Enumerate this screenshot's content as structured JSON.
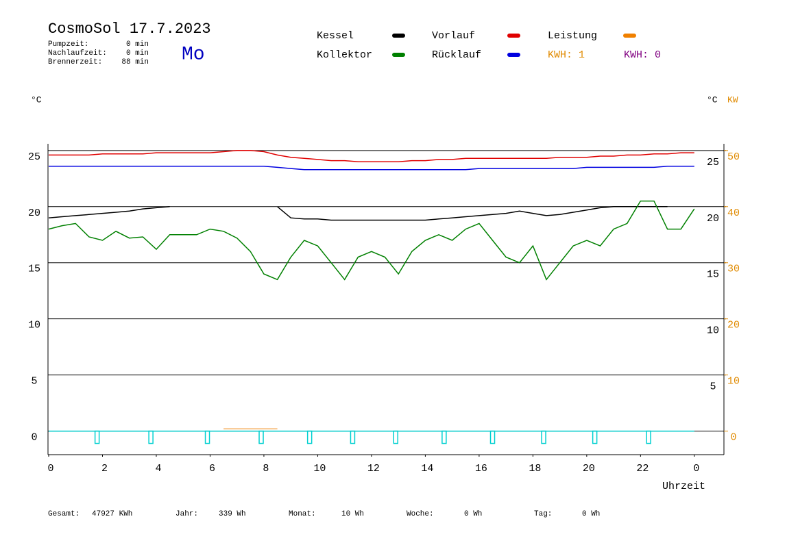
{
  "chart_data": {
    "type": "line",
    "title": "CosmoSol 17.7.2023",
    "weekday": "Mo",
    "info": [
      [
        "Pumpzeit:",
        "0 min"
      ],
      [
        "Nachlaufzeit:",
        "0 min"
      ],
      [
        "Brennerzeit:",
        "88 min"
      ]
    ],
    "y_label": "°C",
    "y2_label_left": "°C",
    "y2_label": "KW",
    "x_label": "Uhrzeit",
    "xlim": [
      0,
      25.1
    ],
    "xticks": [
      0,
      2,
      4,
      6,
      8,
      10,
      12,
      14,
      16,
      18,
      20,
      22,
      {
        "value": 24,
        "label": "0"
      }
    ],
    "ylim": [
      -2.1,
      25.6
    ],
    "yticks": [
      0,
      5,
      10,
      15,
      20,
      25
    ],
    "right_yticks": [
      5,
      10,
      15,
      20,
      25
    ],
    "y2lim": [
      -4.2,
      51.2
    ],
    "y2ticks": [
      0,
      10,
      20,
      30,
      40,
      50
    ],
    "y2_color": "#e08a00",
    "grid": true,
    "x": [
      0,
      0.5,
      1,
      1.5,
      2,
      2.5,
      3,
      3.5,
      4,
      4.5,
      5,
      5.5,
      6,
      6.5,
      7,
      7.5,
      8,
      8.5,
      9,
      9.5,
      10,
      10.5,
      11,
      11.5,
      12,
      12.5,
      13,
      13.5,
      14,
      14.5,
      15,
      15.5,
      16,
      16.5,
      17,
      17.5,
      18,
      18.5,
      19,
      19.5,
      20,
      20.5,
      21,
      21.5,
      22,
      22.5,
      23,
      23.5,
      24
    ],
    "series": [
      {
        "name": "Kessel",
        "color": "#000000",
        "values": [
          19.0,
          19.1,
          19.2,
          19.3,
          19.4,
          19.5,
          19.6,
          19.8,
          19.9,
          20.0,
          null,
          null,
          null,
          null,
          null,
          null,
          null,
          20.0,
          19.0,
          18.9,
          18.9,
          18.8,
          18.8,
          18.8,
          18.8,
          18.8,
          18.8,
          18.8,
          18.8,
          18.9,
          19.0,
          19.1,
          19.2,
          19.3,
          19.4,
          19.6,
          19.4,
          19.2,
          19.3,
          19.5,
          19.7,
          19.9,
          20.0,
          20.0,
          20.0,
          20.0,
          20.0,
          null,
          null
        ]
      },
      {
        "name": "Kollektor",
        "color": "#008000",
        "values": [
          18.0,
          18.3,
          18.5,
          17.3,
          17.0,
          17.8,
          17.2,
          17.3,
          16.2,
          17.5,
          17.5,
          17.5,
          18.0,
          17.8,
          17.2,
          16.0,
          14.0,
          13.5,
          15.5,
          17.0,
          16.5,
          15.0,
          13.5,
          15.5,
          16.0,
          15.5,
          14.0,
          16.0,
          17.0,
          17.5,
          17.0,
          18.0,
          18.5,
          17.0,
          15.5,
          15.0,
          16.5,
          13.5,
          15.0,
          16.5,
          17.0,
          16.5,
          18.0,
          18.5,
          20.5,
          20.5,
          18.0,
          18.0,
          19.8
        ]
      },
      {
        "name": "Vorlauf",
        "color": "#e00000",
        "values": [
          24.6,
          24.6,
          24.6,
          24.6,
          24.7,
          24.7,
          24.7,
          24.7,
          24.8,
          24.8,
          24.8,
          24.8,
          24.8,
          24.9,
          25.0,
          25.0,
          24.9,
          24.6,
          24.4,
          24.3,
          24.2,
          24.1,
          24.1,
          24.0,
          24.0,
          24.0,
          24.0,
          24.1,
          24.1,
          24.2,
          24.2,
          24.3,
          24.3,
          24.3,
          24.3,
          24.3,
          24.3,
          24.3,
          24.4,
          24.4,
          24.4,
          24.5,
          24.5,
          24.6,
          24.6,
          24.7,
          24.7,
          24.8,
          24.8
        ]
      },
      {
        "name": "Rücklauf",
        "color": "#0000e0",
        "values": [
          23.6,
          23.6,
          23.6,
          23.6,
          23.6,
          23.6,
          23.6,
          23.6,
          23.6,
          23.6,
          23.6,
          23.6,
          23.6,
          23.6,
          23.6,
          23.6,
          23.6,
          23.5,
          23.4,
          23.3,
          23.3,
          23.3,
          23.3,
          23.3,
          23.3,
          23.3,
          23.3,
          23.3,
          23.3,
          23.3,
          23.3,
          23.3,
          23.4,
          23.4,
          23.4,
          23.4,
          23.4,
          23.4,
          23.4,
          23.4,
          23.5,
          23.5,
          23.5,
          23.5,
          23.5,
          23.5,
          23.6,
          23.6,
          23.6
        ]
      },
      {
        "name": "Leistung",
        "color": "#f08000",
        "axis": "y2",
        "values": [
          null,
          null,
          null,
          null,
          null,
          null,
          null,
          null,
          null,
          null,
          null,
          null,
          null,
          0.4,
          0.4,
          0.4,
          0.4,
          0.4,
          null,
          null,
          null,
          null,
          null,
          null,
          null,
          null,
          null,
          null,
          null,
          null,
          null,
          null,
          null,
          null,
          null,
          null,
          null,
          null,
          null,
          null,
          null,
          null,
          null,
          null,
          null,
          null,
          null,
          null,
          null
        ]
      }
    ],
    "kwh": [
      {
        "label": "KWH: 1",
        "color": "#e08a00"
      },
      {
        "label": "KWH: 0",
        "color": "#800080"
      }
    ],
    "pump_color": "#00d0d0",
    "pump_x": [
      1.8,
      3.8,
      5.9,
      7.9,
      9.7,
      11.3,
      12.9,
      14.7,
      16.5,
      18.4,
      20.3,
      22.3
    ],
    "totals": [
      [
        "Gesamt:",
        "47927 KWh"
      ],
      [
        "Jahr:",
        "339 Wh"
      ],
      [
        "Monat:",
        "10 Wh"
      ],
      [
        "Woche:",
        "0 Wh"
      ],
      [
        "Tag:",
        "0 Wh"
      ]
    ]
  }
}
